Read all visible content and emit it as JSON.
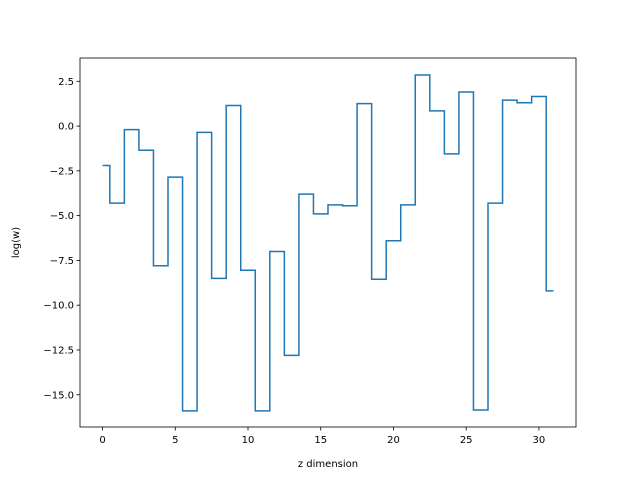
{
  "chart_data": {
    "type": "line",
    "style": "step-mid",
    "title": "",
    "xlabel": "z dimension",
    "ylabel": "log(w)",
    "xlim": [
      -1.55,
      32.55
    ],
    "ylim": [
      -16.8,
      3.8
    ],
    "xticks": [
      0,
      5,
      10,
      15,
      20,
      25,
      30
    ],
    "xtick_labels": [
      "0",
      "5",
      "10",
      "15",
      "20",
      "25",
      "30"
    ],
    "yticks": [
      2.5,
      0.0,
      -2.5,
      -5.0,
      -7.5,
      -10.0,
      -12.5,
      -15.0
    ],
    "ytick_labels": [
      "2.5",
      "0.0",
      "−2.5",
      "−5.0",
      "−7.5",
      "−10.0",
      "−12.5",
      "−15.0"
    ],
    "grid": false,
    "series": [
      {
        "color": "#1f77b4",
        "x": [
          0,
          1,
          2,
          3,
          4,
          5,
          6,
          7,
          8,
          9,
          10,
          11,
          12,
          13,
          14,
          15,
          16,
          17,
          18,
          19,
          20,
          21,
          22,
          23,
          24,
          25,
          26,
          27,
          28,
          29,
          30,
          31
        ],
        "values": [
          -2.2,
          -4.3,
          -0.2,
          -1.35,
          -7.8,
          -2.85,
          -15.9,
          -0.35,
          -8.5,
          1.15,
          -8.05,
          -15.9,
          -7.0,
          -12.8,
          -3.8,
          -4.9,
          -4.4,
          -4.45,
          1.25,
          -8.55,
          -6.4,
          -4.4,
          2.85,
          0.85,
          -1.55,
          1.9,
          -15.85,
          -4.3,
          1.45,
          1.3,
          1.65,
          -9.2
        ]
      }
    ]
  }
}
